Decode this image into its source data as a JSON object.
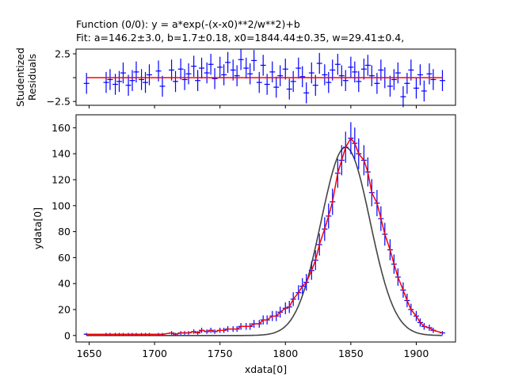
{
  "header": {
    "function_line": "Function (0/0): y = a*exp(-(x-x0)**2/w**2)+b",
    "fit_line": "Fit: a=146.2±3.0, b=1.7±0.18, x0=1844.44±0.35, w=29.41±0.4,"
  },
  "chart_data": [
    {
      "type": "scatter",
      "panel": "residuals",
      "ylabel": "Studentized\nResiduals",
      "xlim": [
        1640,
        1930
      ],
      "ylim": [
        -2.9,
        3.0
      ],
      "yticks": [
        "2.5",
        "",
        "−2.5"
      ],
      "ytick_values": [
        2.5,
        0,
        -2.5
      ],
      "reference_line": 0,
      "series": [
        {
          "x": [
            1648,
            1663,
            1666,
            1670,
            1673,
            1676,
            1680,
            1683,
            1686,
            1690,
            1693,
            1696,
            1703,
            1706,
            1713,
            1716,
            1720,
            1723,
            1726,
            1730,
            1733,
            1736,
            1740,
            1743,
            1746,
            1750,
            1753,
            1756,
            1760,
            1763,
            1766,
            1770,
            1773,
            1776,
            1780,
            1783,
            1786,
            1790,
            1793,
            1796,
            1800,
            1803,
            1806,
            1810,
            1813,
            1816,
            1820,
            1823,
            1826,
            1830,
            1833,
            1836,
            1840,
            1843,
            1846,
            1850,
            1853,
            1856,
            1860,
            1863,
            1866,
            1870,
            1873,
            1876,
            1880,
            1883,
            1886,
            1890,
            1893,
            1896,
            1900,
            1903,
            1906,
            1910,
            1913,
            1920
          ],
          "y": [
            -0.6,
            -0.5,
            -0.2,
            -0.7,
            -0.4,
            0.5,
            -0.8,
            -0.3,
            0.6,
            -0.2,
            -0.5,
            0.3,
            0.7,
            -0.9,
            0.8,
            -0.4,
            0.9,
            -0.2,
            0.4,
            1.2,
            -0.3,
            1.0,
            0.5,
            1.4,
            -0.1,
            1.1,
            0.3,
            1.6,
            0.8,
            0.2,
            1.9,
            1.0,
            0.4,
            1.8,
            -0.5,
            1.3,
            -0.7,
            0.6,
            -1.0,
            0.2,
            0.9,
            -1.2,
            -0.4,
            1.0,
            0.1,
            -1.6,
            0.5,
            -0.8,
            1.5,
            0.3,
            -0.5,
            0.8,
            1.4,
            0.2,
            -0.3,
            1.1,
            0.6,
            -0.4,
            0.9,
            1.3,
            0.2,
            -0.6,
            0.8,
            0.0,
            -0.9,
            -0.2,
            0.5,
            -2.0,
            -0.6,
            0.8,
            -1.1,
            0.3,
            -1.4,
            0.4,
            -0.2,
            -0.3
          ],
          "err": [
            0.55,
            0.55,
            0.55,
            0.55,
            0.55,
            0.55,
            0.55,
            0.55,
            0.55,
            0.55,
            0.55,
            0.55,
            0.55,
            0.55,
            0.55,
            0.55,
            0.55,
            0.55,
            0.55,
            0.55,
            0.55,
            0.55,
            0.55,
            0.55,
            0.55,
            0.55,
            0.55,
            0.55,
            0.55,
            0.55,
            0.55,
            0.55,
            0.55,
            0.55,
            0.55,
            0.55,
            0.55,
            0.55,
            0.55,
            0.55,
            0.55,
            0.55,
            0.55,
            0.55,
            0.55,
            0.55,
            0.55,
            0.55,
            0.55,
            0.55,
            0.55,
            0.55,
            0.55,
            0.55,
            0.55,
            0.55,
            0.55,
            0.55,
            0.55,
            0.55,
            0.55,
            0.55,
            0.55,
            0.55,
            0.55,
            0.55,
            0.55,
            0.55,
            0.55,
            0.55,
            0.55,
            0.55,
            0.55,
            0.55,
            0.55,
            0.55
          ]
        }
      ]
    },
    {
      "type": "scatter",
      "panel": "main",
      "xlabel": "xdata[0]",
      "ylabel": "ydata[0]",
      "xlim": [
        1640,
        1930
      ],
      "ylim": [
        -5,
        170
      ],
      "xticks": [
        1650,
        1700,
        1750,
        1800,
        1850,
        1900
      ],
      "yticks": [
        0,
        20,
        40,
        60,
        80,
        100,
        120,
        140,
        160
      ],
      "fit_params": {
        "a": 146.2,
        "b": 1.7,
        "x0": 1844.44,
        "w": 29.41
      },
      "reference_curve": {
        "a": 145,
        "b": 0,
        "x0": 1846,
        "w": 26.5,
        "color": "#444444"
      },
      "fit_color": "#ff0000",
      "data_color": "#0000ff",
      "series": [
        {
          "x": [
            1648,
            1663,
            1666,
            1670,
            1673,
            1676,
            1680,
            1683,
            1686,
            1690,
            1693,
            1696,
            1703,
            1706,
            1713,
            1716,
            1720,
            1723,
            1726,
            1730,
            1733,
            1736,
            1740,
            1743,
            1746,
            1750,
            1753,
            1756,
            1760,
            1763,
            1766,
            1770,
            1773,
            1776,
            1780,
            1783,
            1786,
            1790,
            1793,
            1796,
            1800,
            1803,
            1806,
            1810,
            1813,
            1816,
            1820,
            1823,
            1826,
            1830,
            1833,
            1836,
            1840,
            1843,
            1846,
            1850,
            1853,
            1856,
            1860,
            1863,
            1866,
            1870,
            1873,
            1876,
            1880,
            1883,
            1886,
            1890,
            1893,
            1896,
            1900,
            1903,
            1906,
            1910,
            1913,
            1920
          ],
          "y": [
            1,
            1,
            1,
            1,
            1,
            1,
            1,
            1,
            1,
            1,
            1,
            1,
            1,
            1,
            2,
            1,
            2,
            2,
            2,
            3,
            2,
            4,
            3,
            4,
            3,
            4,
            4,
            5,
            5,
            5,
            7,
            7,
            7,
            9,
            9,
            12,
            12,
            15,
            15,
            18,
            21,
            22,
            28,
            33,
            38,
            41,
            50,
            58,
            70,
            82,
            92,
            103,
            125,
            135,
            145,
            152,
            148,
            140,
            135,
            126,
            110,
            102,
            90,
            78,
            66,
            55,
            45,
            35,
            27,
            20,
            15,
            10,
            7,
            6,
            4,
            2
          ],
          "err": [
            1,
            1,
            1,
            1,
            1,
            1,
            1,
            1,
            1,
            1,
            1,
            1,
            1,
            1,
            1.4,
            1,
            1.4,
            1.4,
            1.4,
            1.7,
            1.4,
            2,
            1.7,
            2,
            1.7,
            2,
            2,
            2.2,
            2.2,
            2.2,
            2.6,
            2.6,
            2.6,
            3,
            3,
            3.5,
            3.5,
            3.9,
            3.9,
            4.2,
            4.6,
            4.7,
            5.3,
            5.7,
            6.2,
            6.4,
            7.1,
            7.6,
            8.4,
            9.1,
            9.6,
            10.1,
            11.2,
            11.6,
            12,
            12.3,
            12.2,
            11.8,
            11.6,
            11.2,
            10.5,
            10.1,
            9.5,
            8.8,
            8.1,
            7.4,
            6.7,
            5.9,
            5.2,
            4.5,
            3.9,
            3.2,
            2.6,
            2.4,
            2,
            1.4
          ]
        }
      ]
    }
  ]
}
